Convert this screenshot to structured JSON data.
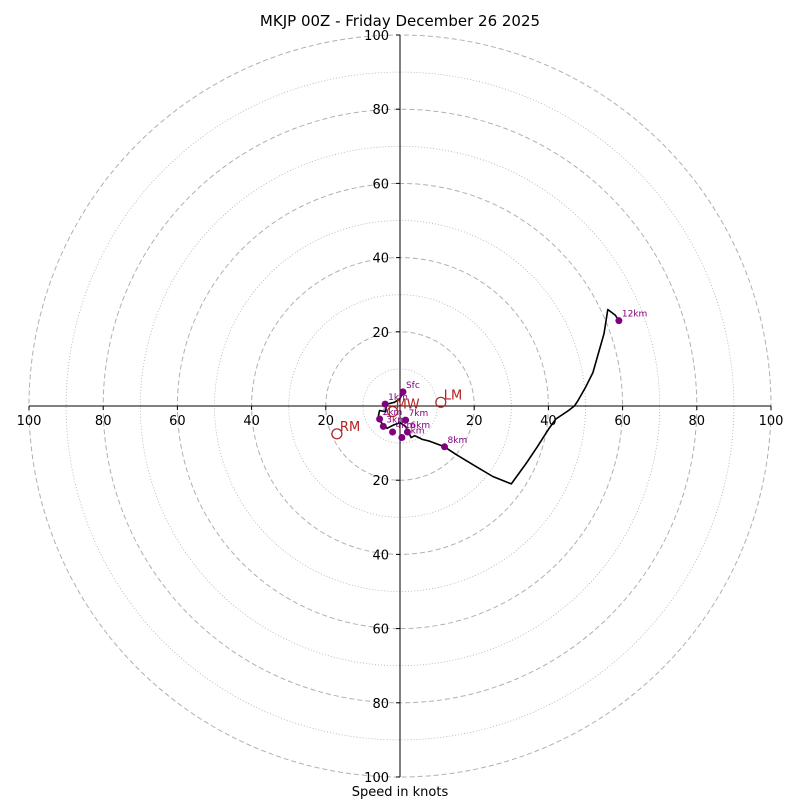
{
  "chart_data": {
    "type": "hodograph",
    "title": "MKJP 00Z - Friday December 26 2025",
    "xlabel": "Speed in knots",
    "units": "knots",
    "range": [
      -100,
      100
    ],
    "rings_major": [
      20,
      40,
      60,
      80,
      100
    ],
    "rings_minor": [
      10,
      30,
      50,
      70,
      90
    ],
    "x_ticks": [
      {
        "value": -100,
        "label": "100"
      },
      {
        "value": -80,
        "label": "80"
      },
      {
        "value": -60,
        "label": "60"
      },
      {
        "value": -40,
        "label": "40"
      },
      {
        "value": -20,
        "label": "20"
      },
      {
        "value": 20,
        "label": "20"
      },
      {
        "value": 40,
        "label": "40"
      },
      {
        "value": 60,
        "label": "60"
      },
      {
        "value": 80,
        "label": "80"
      },
      {
        "value": 100,
        "label": "100"
      }
    ],
    "y_ticks": [
      {
        "value": 100,
        "label": "100"
      },
      {
        "value": 80,
        "label": "80"
      },
      {
        "value": 60,
        "label": "60"
      },
      {
        "value": 40,
        "label": "40"
      },
      {
        "value": 20,
        "label": "20"
      },
      {
        "value": -20,
        "label": "20"
      },
      {
        "value": -40,
        "label": "40"
      },
      {
        "value": -60,
        "label": "60"
      },
      {
        "value": -80,
        "label": "80"
      },
      {
        "value": -100,
        "label": "100"
      }
    ],
    "hodo_trace": {
      "u": [
        0.8,
        0,
        -1.5,
        -3.5,
        -4,
        -5.5,
        -5.8,
        -5.5,
        -4.5,
        -3.5,
        -2.5,
        -1.5,
        0,
        1.5,
        2,
        2.5,
        3,
        4,
        5,
        6,
        8,
        12,
        15,
        20,
        25,
        30,
        34,
        37,
        40,
        42,
        45,
        47,
        48,
        50,
        52,
        53,
        54,
        55,
        56,
        58,
        59
      ],
      "v": [
        3.8,
        2,
        1,
        0.5,
        -1.5,
        -1.2,
        -2.5,
        -4,
        -5,
        -6,
        -5.5,
        -5,
        -4.5,
        -5.5,
        -6.5,
        -7.5,
        -8.5,
        -8,
        -8.5,
        -9,
        -9.5,
        -11,
        -13,
        -16,
        -19,
        -21,
        -15.5,
        -11,
        -6.3,
        -3.5,
        -1.5,
        0,
        1.5,
        5,
        9,
        12.5,
        16,
        19.5,
        26,
        24.5,
        23
      ]
    },
    "height_markers": [
      {
        "label": "Sfc",
        "u": 0.8,
        "v": 3.8
      },
      {
        "label": "1km",
        "u": -4,
        "v": 0.5
      },
      {
        "label": "2km",
        "u": -5.5,
        "v": -3.5
      },
      {
        "label": "3km",
        "u": -4.5,
        "v": -5.5
      },
      {
        "label": "4km",
        "u": -2,
        "v": -7
      },
      {
        "label": "5km",
        "u": 0.5,
        "v": -8.5
      },
      {
        "label": "6km",
        "u": 2,
        "v": -7
      },
      {
        "label": "7km",
        "u": 1.5,
        "v": -3.8
      },
      {
        "label": "8km",
        "u": 12,
        "v": -11
      },
      {
        "label": "12km",
        "u": 59,
        "v": 23
      }
    ],
    "motion_markers": [
      {
        "label": "LM",
        "u": 11,
        "v": 1
      },
      {
        "label": "RM",
        "u": -17,
        "v": -7.5
      },
      {
        "label": "MW",
        "u": -2,
        "v": -1.5
      }
    ],
    "colors": {
      "trace": "#000000",
      "height_marker": "#800080",
      "motion_marker": "#b22222",
      "ring": "#b0b0b0",
      "axis": "#000000"
    }
  }
}
